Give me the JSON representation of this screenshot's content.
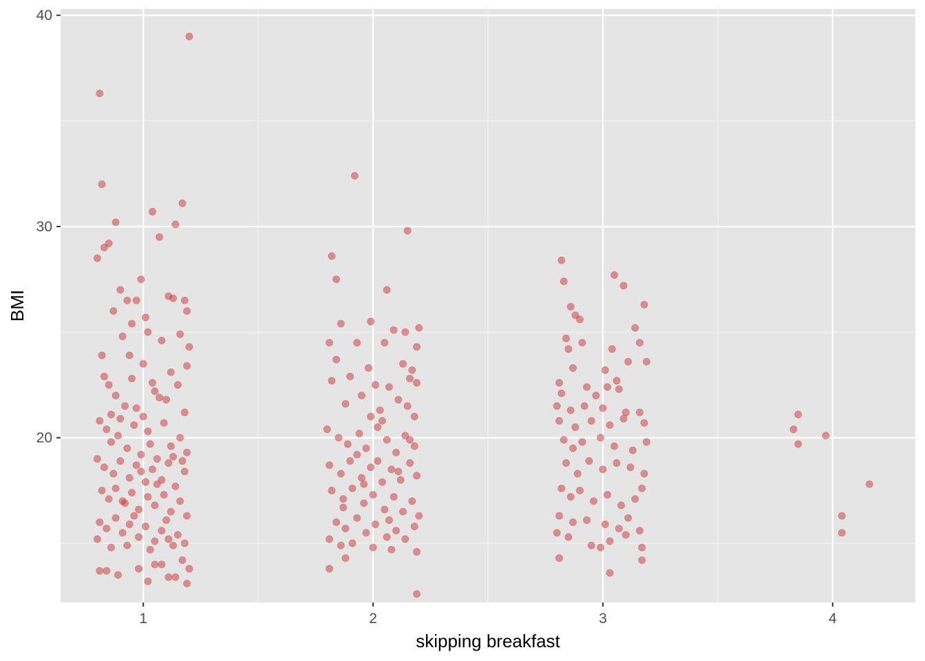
{
  "chart_data": {
    "type": "scatter",
    "title": "",
    "xlabel": "skipping breakfast",
    "ylabel": "BMI",
    "x_ticks": [
      1,
      2,
      3,
      4
    ],
    "y_ticks": [
      20,
      30,
      40
    ],
    "xlim": [
      0.64,
      4.36
    ],
    "ylim": [
      12.2,
      40.3
    ],
    "grid": true,
    "legend": "none",
    "point_color": "#CC3333",
    "point_alpha": 0.5,
    "background": "#E5E5E5",
    "series": [
      {
        "points": [
          [
            0.81,
            36.3
          ],
          [
            1.2,
            39.0
          ],
          [
            0.82,
            32.0
          ],
          [
            0.88,
            30.2
          ],
          [
            0.85,
            29.2
          ],
          [
            0.83,
            29.0
          ],
          [
            0.8,
            28.5
          ],
          [
            1.04,
            30.7
          ],
          [
            1.07,
            29.5
          ],
          [
            1.14,
            30.1
          ],
          [
            1.17,
            31.1
          ],
          [
            0.99,
            27.5
          ],
          [
            0.9,
            27.0
          ],
          [
            0.93,
            26.5
          ],
          [
            0.87,
            26.0
          ],
          [
            1.11,
            26.7
          ],
          [
            1.13,
            26.6
          ],
          [
            1.18,
            26.5
          ],
          [
            1.19,
            26.0
          ],
          [
            0.97,
            26.5
          ],
          [
            1.01,
            25.7
          ],
          [
            0.95,
            25.4
          ],
          [
            0.91,
            24.8
          ],
          [
            1.02,
            25.0
          ],
          [
            1.16,
            24.9
          ],
          [
            1.2,
            24.3
          ],
          [
            0.82,
            23.9
          ],
          [
            1.08,
            24.6
          ],
          [
            0.85,
            22.5
          ],
          [
            0.88,
            22.0
          ],
          [
            0.92,
            21.5
          ],
          [
            0.95,
            22.8
          ],
          [
            1.0,
            21.0
          ],
          [
            1.05,
            22.2
          ],
          [
            1.1,
            21.8
          ],
          [
            1.15,
            22.5
          ],
          [
            1.18,
            21.2
          ],
          [
            0.81,
            20.8
          ],
          [
            0.84,
            20.4
          ],
          [
            0.86,
            19.8
          ],
          [
            0.89,
            20.1
          ],
          [
            0.93,
            19.5
          ],
          [
            0.96,
            20.6
          ],
          [
            0.99,
            19.2
          ],
          [
            1.02,
            20.3
          ],
          [
            1.06,
            19.0
          ],
          [
            1.09,
            20.7
          ],
          [
            1.12,
            19.6
          ],
          [
            1.16,
            20.0
          ],
          [
            1.19,
            19.3
          ],
          [
            0.8,
            19.0
          ],
          [
            0.83,
            18.6
          ],
          [
            0.87,
            18.3
          ],
          [
            0.9,
            18.9
          ],
          [
            0.94,
            18.1
          ],
          [
            0.97,
            18.7
          ],
          [
            1.01,
            17.9
          ],
          [
            1.04,
            18.5
          ],
          [
            1.08,
            18.0
          ],
          [
            1.11,
            18.8
          ],
          [
            1.14,
            17.7
          ],
          [
            1.18,
            18.4
          ],
          [
            0.82,
            17.5
          ],
          [
            0.85,
            17.1
          ],
          [
            0.88,
            17.6
          ],
          [
            0.92,
            16.9
          ],
          [
            0.95,
            17.4
          ],
          [
            0.98,
            16.6
          ],
          [
            1.02,
            17.2
          ],
          [
            1.05,
            16.8
          ],
          [
            1.09,
            17.3
          ],
          [
            1.12,
            16.5
          ],
          [
            1.16,
            17.0
          ],
          [
            1.19,
            16.3
          ],
          [
            0.81,
            16.0
          ],
          [
            0.84,
            15.7
          ],
          [
            0.88,
            16.2
          ],
          [
            0.91,
            15.5
          ],
          [
            0.94,
            15.9
          ],
          [
            0.98,
            15.3
          ],
          [
            1.01,
            15.8
          ],
          [
            1.05,
            15.1
          ],
          [
            1.08,
            15.6
          ],
          [
            1.11,
            15.2
          ],
          [
            1.15,
            15.4
          ],
          [
            1.18,
            15.0
          ],
          [
            0.8,
            15.2
          ],
          [
            0.86,
            14.8
          ],
          [
            0.93,
            14.9
          ],
          [
            1.03,
            14.7
          ],
          [
            1.13,
            14.9
          ],
          [
            0.81,
            13.7
          ],
          [
            0.84,
            13.7
          ],
          [
            0.89,
            13.5
          ],
          [
            0.98,
            13.8
          ],
          [
            1.02,
            13.2
          ],
          [
            1.05,
            14.0
          ],
          [
            1.08,
            14.0
          ],
          [
            1.11,
            13.4
          ],
          [
            1.14,
            13.4
          ],
          [
            1.17,
            14.2
          ],
          [
            1.19,
            13.1
          ],
          [
            1.2,
            13.8
          ],
          [
            0.9,
            20.9
          ],
          [
            0.97,
            21.4
          ],
          [
            1.03,
            19.7
          ],
          [
            1.07,
            21.9
          ],
          [
            1.13,
            19.1
          ],
          [
            0.86,
            21.1
          ],
          [
            0.99,
            18.4
          ],
          [
            1.06,
            17.8
          ],
          [
            0.91,
            17.0
          ],
          [
            1.1,
            16.1
          ],
          [
            0.96,
            16.3
          ],
          [
            1.17,
            18.9
          ],
          [
            0.83,
            22.9
          ],
          [
            1.0,
            23.5
          ],
          [
            1.12,
            23.1
          ],
          [
            0.94,
            23.9
          ],
          [
            1.04,
            22.6
          ],
          [
            1.19,
            23.4
          ],
          [
            1.82,
            28.6
          ],
          [
            1.84,
            27.5
          ],
          [
            1.92,
            32.4
          ],
          [
            2.15,
            29.8
          ],
          [
            2.06,
            27.0
          ],
          [
            1.86,
            25.4
          ],
          [
            1.99,
            25.5
          ],
          [
            2.09,
            25.1
          ],
          [
            2.14,
            25.0
          ],
          [
            2.2,
            25.2
          ],
          [
            1.81,
            24.5
          ],
          [
            1.93,
            24.5
          ],
          [
            2.05,
            24.5
          ],
          [
            2.19,
            24.3
          ],
          [
            1.84,
            23.7
          ],
          [
            1.98,
            23.3
          ],
          [
            2.13,
            23.5
          ],
          [
            2.17,
            23.2
          ],
          [
            1.82,
            22.7
          ],
          [
            1.9,
            22.9
          ],
          [
            2.01,
            22.5
          ],
          [
            2.07,
            22.4
          ],
          [
            2.16,
            22.8
          ],
          [
            2.19,
            22.6
          ],
          [
            1.88,
            21.6
          ],
          [
            1.95,
            22.0
          ],
          [
            2.03,
            21.3
          ],
          [
            2.11,
            21.8
          ],
          [
            2.18,
            21.0
          ],
          [
            1.8,
            20.4
          ],
          [
            1.85,
            20.0
          ],
          [
            1.89,
            19.7
          ],
          [
            1.94,
            20.2
          ],
          [
            1.97,
            19.5
          ],
          [
            2.02,
            20.5
          ],
          [
            2.06,
            19.9
          ],
          [
            2.1,
            19.3
          ],
          [
            2.14,
            20.1
          ],
          [
            2.18,
            19.6
          ],
          [
            1.81,
            18.7
          ],
          [
            1.86,
            18.3
          ],
          [
            1.9,
            18.9
          ],
          [
            1.95,
            18.1
          ],
          [
            1.99,
            18.6
          ],
          [
            2.04,
            17.9
          ],
          [
            2.08,
            18.5
          ],
          [
            2.12,
            18.0
          ],
          [
            2.16,
            18.8
          ],
          [
            2.19,
            18.2
          ],
          [
            1.82,
            17.5
          ],
          [
            1.87,
            17.1
          ],
          [
            1.91,
            17.6
          ],
          [
            1.96,
            16.9
          ],
          [
            2.0,
            17.3
          ],
          [
            2.05,
            16.6
          ],
          [
            2.09,
            17.2
          ],
          [
            2.13,
            16.5
          ],
          [
            2.17,
            17.0
          ],
          [
            2.2,
            16.3
          ],
          [
            1.84,
            16.0
          ],
          [
            1.88,
            15.7
          ],
          [
            1.93,
            16.2
          ],
          [
            1.97,
            15.5
          ],
          [
            2.01,
            15.9
          ],
          [
            2.06,
            15.3
          ],
          [
            2.1,
            15.6
          ],
          [
            2.14,
            15.2
          ],
          [
            2.18,
            15.8
          ],
          [
            1.81,
            15.2
          ],
          [
            1.86,
            14.9
          ],
          [
            1.91,
            15.0
          ],
          [
            2.0,
            14.8
          ],
          [
            2.08,
            14.7
          ],
          [
            2.19,
            14.6
          ],
          [
            1.81,
            13.8
          ],
          [
            1.88,
            14.3
          ],
          [
            2.19,
            12.6
          ],
          [
            1.99,
            21.0
          ],
          [
            2.04,
            20.8
          ],
          [
            2.15,
            21.5
          ],
          [
            1.93,
            19.2
          ],
          [
            2.11,
            18.4
          ],
          [
            1.87,
            16.7
          ],
          [
            2.07,
            16.1
          ],
          [
            1.96,
            17.8
          ],
          [
            2.02,
            18.9
          ],
          [
            2.16,
            19.9
          ],
          [
            2.82,
            28.4
          ],
          [
            2.83,
            27.4
          ],
          [
            3.05,
            27.7
          ],
          [
            3.09,
            27.2
          ],
          [
            3.18,
            26.3
          ],
          [
            2.86,
            26.2
          ],
          [
            2.88,
            25.8
          ],
          [
            2.9,
            25.6
          ],
          [
            3.14,
            25.2
          ],
          [
            2.84,
            24.7
          ],
          [
            2.91,
            24.5
          ],
          [
            3.04,
            24.2
          ],
          [
            3.16,
            24.5
          ],
          [
            2.85,
            24.2
          ],
          [
            2.87,
            23.3
          ],
          [
            3.01,
            23.2
          ],
          [
            3.11,
            23.6
          ],
          [
            3.19,
            23.6
          ],
          [
            2.81,
            22.6
          ],
          [
            2.93,
            22.4
          ],
          [
            3.02,
            22.4
          ],
          [
            3.06,
            22.7
          ],
          [
            2.82,
            22.1
          ],
          [
            2.97,
            22.0
          ],
          [
            3.07,
            22.3
          ],
          [
            2.8,
            21.5
          ],
          [
            2.86,
            21.3
          ],
          [
            2.92,
            21.5
          ],
          [
            3.0,
            21.4
          ],
          [
            3.1,
            21.2
          ],
          [
            3.16,
            21.2
          ],
          [
            2.81,
            20.8
          ],
          [
            2.88,
            20.5
          ],
          [
            2.95,
            20.8
          ],
          [
            3.03,
            20.6
          ],
          [
            3.09,
            20.9
          ],
          [
            3.18,
            20.7
          ],
          [
            2.83,
            19.9
          ],
          [
            2.87,
            19.5
          ],
          [
            2.91,
            19.8
          ],
          [
            2.99,
            20.0
          ],
          [
            3.05,
            19.6
          ],
          [
            3.13,
            19.4
          ],
          [
            3.19,
            19.8
          ],
          [
            2.84,
            18.8
          ],
          [
            2.89,
            18.3
          ],
          [
            2.94,
            18.9
          ],
          [
            3.0,
            18.5
          ],
          [
            3.06,
            18.8
          ],
          [
            3.12,
            18.6
          ],
          [
            3.18,
            18.3
          ],
          [
            2.82,
            17.6
          ],
          [
            2.86,
            17.2
          ],
          [
            2.9,
            17.5
          ],
          [
            2.96,
            17.0
          ],
          [
            3.02,
            17.3
          ],
          [
            3.08,
            16.8
          ],
          [
            3.14,
            17.1
          ],
          [
            3.17,
            17.6
          ],
          [
            2.81,
            16.3
          ],
          [
            2.87,
            16.0
          ],
          [
            2.93,
            16.1
          ],
          [
            3.01,
            15.9
          ],
          [
            3.07,
            15.7
          ],
          [
            3.11,
            16.2
          ],
          [
            3.16,
            15.6
          ],
          [
            2.8,
            15.5
          ],
          [
            2.85,
            15.3
          ],
          [
            2.95,
            14.9
          ],
          [
            2.99,
            14.8
          ],
          [
            3.03,
            15.1
          ],
          [
            3.1,
            15.4
          ],
          [
            3.17,
            14.8
          ],
          [
            2.81,
            14.3
          ],
          [
            3.17,
            14.2
          ],
          [
            3.03,
            13.6
          ]
        ]
      },
      {
        "points": [
          [
            3.85,
            21.1
          ],
          [
            3.83,
            20.4
          ],
          [
            3.85,
            19.7
          ],
          [
            3.97,
            20.1
          ],
          [
            4.16,
            17.8
          ],
          [
            4.04,
            16.3
          ],
          [
            4.04,
            15.5
          ]
        ]
      }
    ]
  }
}
